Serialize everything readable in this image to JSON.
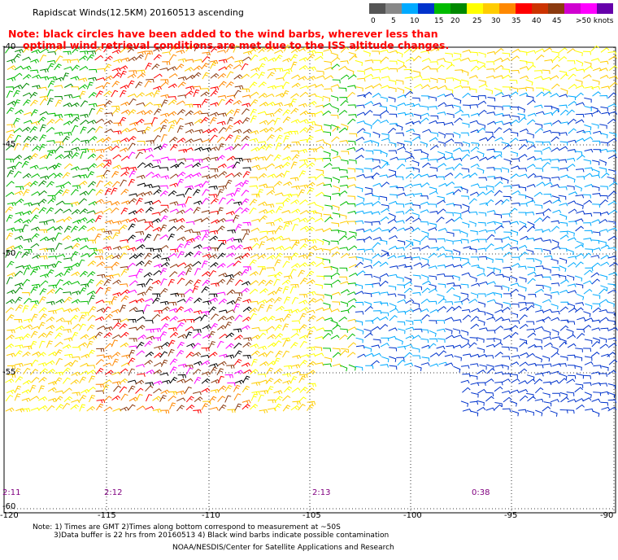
{
  "title": "Rapidscat Winds(12.5KM) 20160513 ascending",
  "note_lines": [
    "Note: black circles have been added to the wind barbs, wherever less than",
    "optimal wind retrieval conditions are met due to the ISS altitude changes."
  ],
  "color_scale": {
    "colors": [
      "#555555",
      "#888888",
      "#00aaff",
      "#0033cc",
      "#00bb00",
      "#008800",
      "#ffff00",
      "#ffcc00",
      "#ff8800",
      "#ff0000",
      "#cc3300",
      "#8b3a0f",
      "#d000d0",
      "#ff00ff",
      "#6600aa"
    ],
    "labels": [
      "0",
      "5",
      "10",
      "15",
      "20",
      "25",
      "30",
      "35",
      "40",
      "45",
      ">50 knots"
    ],
    "unit": "knots"
  },
  "axes": {
    "lon_ticks": [
      "-120",
      "-115",
      "-110",
      "-105",
      "-100",
      "-95",
      "-90"
    ],
    "lat_ticks": [
      "-40",
      "-45",
      "-50",
      "-55",
      "-60"
    ]
  },
  "pass_times": [
    "2:11",
    "2:12",
    "2:13",
    "0:38"
  ],
  "footer": {
    "line1": "Note: 1) Times are GMT 2)Times along bottom correspond to measurement at ~50S",
    "line2": "3)Data buffer is 22 hrs from 20160513 4) Black wind barbs indicate possible contamination",
    "credit": "NOAA/NESDIS/Center for Satellite Applications and Research"
  }
}
